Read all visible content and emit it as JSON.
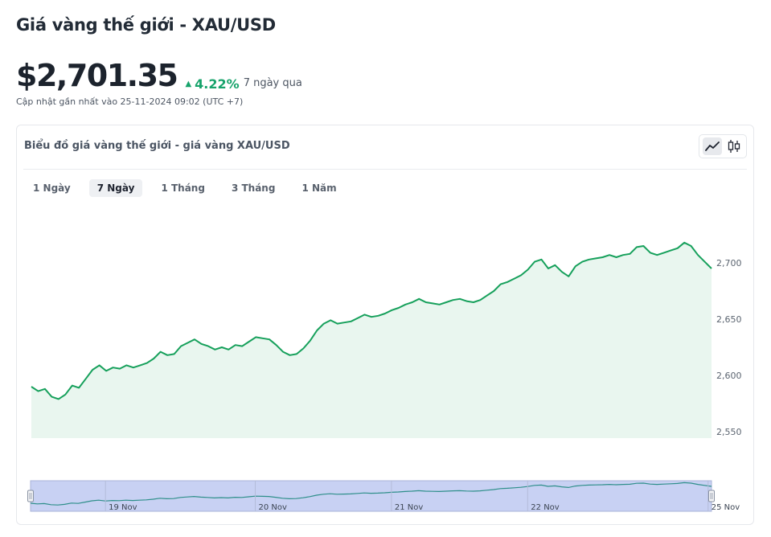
{
  "header": {
    "title": "Giá vàng thế giới - XAU/USD",
    "price": "$2,701.35",
    "change": "4.22%",
    "period": "7 ngày qua",
    "updated": "Cập nhật gần nhất vào 25-11-2024 09:02 (UTC +7)"
  },
  "card": {
    "title": "Biểu đồ giá vàng thế giới - giá vàng XAU/USD",
    "chart_types": [
      "line-chart-icon",
      "candlestick-icon"
    ],
    "active_chart_type": "line"
  },
  "range_tabs": [
    {
      "label": "1 Ngày",
      "active": false
    },
    {
      "label": "7 Ngày",
      "active": true
    },
    {
      "label": "1 Tháng",
      "active": false
    },
    {
      "label": "3 Tháng",
      "active": false
    },
    {
      "label": "1 Năm",
      "active": false
    }
  ],
  "colors": {
    "line": "#16a05b",
    "area": "#e9f6ef",
    "up": "#16a36b",
    "navigator_fill": "#c8d1f3",
    "navigator_line": "#2e8f8a"
  },
  "chart_data": {
    "type": "area",
    "title": "",
    "xlabel": "",
    "ylabel": "",
    "ylim": [
      2550,
      2720
    ],
    "y_ticks": [
      "2,550",
      "2,600",
      "2,650",
      "2,700"
    ],
    "y_tick_values": [
      2550,
      2600,
      2650,
      2700
    ],
    "grid": false,
    "navigator_ticks": [
      {
        "label": "19 Nov",
        "t": 0.11
      },
      {
        "label": "20 Nov",
        "t": 0.33
      },
      {
        "label": "21 Nov",
        "t": 0.53
      },
      {
        "label": "22 Nov",
        "t": 0.73
      },
      {
        "label": "25 Nov",
        "t": 0.995
      }
    ],
    "series": [
      {
        "values": [
          [
            0.0,
            2590
          ],
          [
            0.01,
            2586
          ],
          [
            0.02,
            2588
          ],
          [
            0.03,
            2581
          ],
          [
            0.04,
            2579
          ],
          [
            0.05,
            2583
          ],
          [
            0.06,
            2591
          ],
          [
            0.07,
            2589
          ],
          [
            0.08,
            2597
          ],
          [
            0.09,
            2605
          ],
          [
            0.1,
            2609
          ],
          [
            0.11,
            2604
          ],
          [
            0.12,
            2607
          ],
          [
            0.13,
            2606
          ],
          [
            0.14,
            2609
          ],
          [
            0.15,
            2607
          ],
          [
            0.16,
            2609
          ],
          [
            0.17,
            2611
          ],
          [
            0.18,
            2615
          ],
          [
            0.19,
            2621
          ],
          [
            0.2,
            2618
          ],
          [
            0.21,
            2619
          ],
          [
            0.22,
            2626
          ],
          [
            0.23,
            2629
          ],
          [
            0.24,
            2632
          ],
          [
            0.25,
            2628
          ],
          [
            0.26,
            2626
          ],
          [
            0.27,
            2623
          ],
          [
            0.28,
            2625
          ],
          [
            0.29,
            2623
          ],
          [
            0.3,
            2627
          ],
          [
            0.31,
            2626
          ],
          [
            0.32,
            2630
          ],
          [
            0.33,
            2634
          ],
          [
            0.34,
            2633
          ],
          [
            0.35,
            2632
          ],
          [
            0.36,
            2627
          ],
          [
            0.37,
            2621
          ],
          [
            0.38,
            2618
          ],
          [
            0.39,
            2619
          ],
          [
            0.4,
            2624
          ],
          [
            0.41,
            2631
          ],
          [
            0.42,
            2640
          ],
          [
            0.43,
            2646
          ],
          [
            0.44,
            2649
          ],
          [
            0.45,
            2646
          ],
          [
            0.46,
            2647
          ],
          [
            0.47,
            2648
          ],
          [
            0.48,
            2651
          ],
          [
            0.49,
            2654
          ],
          [
            0.5,
            2652
          ],
          [
            0.51,
            2653
          ],
          [
            0.52,
            2655
          ],
          [
            0.53,
            2658
          ],
          [
            0.54,
            2660
          ],
          [
            0.55,
            2663
          ],
          [
            0.56,
            2665
          ],
          [
            0.57,
            2668
          ],
          [
            0.58,
            2665
          ],
          [
            0.59,
            2664
          ],
          [
            0.6,
            2663
          ],
          [
            0.61,
            2665
          ],
          [
            0.62,
            2667
          ],
          [
            0.63,
            2668
          ],
          [
            0.64,
            2666
          ],
          [
            0.65,
            2665
          ],
          [
            0.66,
            2667
          ],
          [
            0.67,
            2671
          ],
          [
            0.68,
            2675
          ],
          [
            0.69,
            2681
          ],
          [
            0.7,
            2683
          ],
          [
            0.71,
            2686
          ],
          [
            0.72,
            2689
          ],
          [
            0.73,
            2694
          ],
          [
            0.74,
            2701
          ],
          [
            0.75,
            2703
          ],
          [
            0.76,
            2695
          ],
          [
            0.77,
            2698
          ],
          [
            0.78,
            2692
          ],
          [
            0.79,
            2688
          ],
          [
            0.8,
            2697
          ],
          [
            0.81,
            2701
          ],
          [
            0.82,
            2703
          ],
          [
            0.83,
            2704
          ],
          [
            0.84,
            2705
          ],
          [
            0.85,
            2707
          ],
          [
            0.86,
            2705
          ],
          [
            0.87,
            2707
          ],
          [
            0.88,
            2708
          ],
          [
            0.89,
            2714
          ],
          [
            0.9,
            2715
          ],
          [
            0.91,
            2709
          ],
          [
            0.92,
            2707
          ],
          [
            0.93,
            2709
          ],
          [
            0.94,
            2711
          ],
          [
            0.95,
            2713
          ],
          [
            0.96,
            2718
          ],
          [
            0.97,
            2715
          ],
          [
            0.98,
            2707
          ],
          [
            0.99,
            2701
          ],
          [
            1.0,
            2695
          ]
        ]
      }
    ]
  }
}
